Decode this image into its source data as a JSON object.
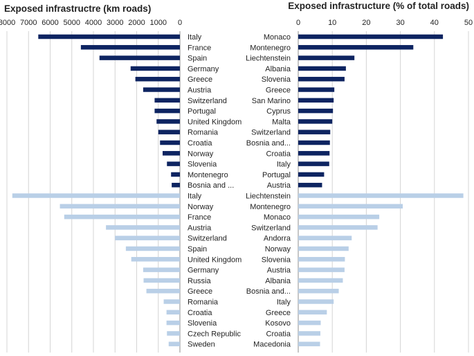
{
  "colors": {
    "dark": "#0d2461",
    "light": "#b9cfe7",
    "grid": "#d4d4d4",
    "axis": "#8c8c8c",
    "text": "#222222"
  },
  "chart_data": [
    {
      "type": "bar",
      "orientation": "horizontal",
      "direction": "reversed",
      "title": "Exposed infrastructre (km roads)",
      "xlim": [
        0,
        8000
      ],
      "xticks": [
        8000,
        7000,
        6000,
        5000,
        4000,
        3000,
        2000,
        1000,
        0
      ],
      "grid": true,
      "groups": [
        {
          "name": "dark-series",
          "color": "#0d2461",
          "categories": [
            "Italy",
            "France",
            "Spain",
            "Germany",
            "Greece",
            "Austria",
            "Switzerland",
            "Portugal",
            "United Kingdom",
            "Romania",
            "Croatia",
            "Norway",
            "Slovenia",
            "Montenegro",
            "Bosnia and ..."
          ],
          "values": [
            6550,
            4580,
            3720,
            2280,
            2060,
            1700,
            1170,
            1170,
            1080,
            1000,
            920,
            800,
            600,
            410,
            380
          ]
        },
        {
          "name": "light-series",
          "color": "#b9cfe7",
          "categories": [
            "Italy",
            "Norway",
            "France",
            "Austria",
            "Switzerland",
            "Spain",
            "United Kingdom",
            "Germany",
            "Russia",
            "Greece",
            "Romania",
            "Croatia",
            "Slovenia",
            "Czech Republic",
            "Sweden"
          ],
          "values": [
            7750,
            5550,
            5350,
            3420,
            3000,
            2500,
            2250,
            1700,
            1680,
            1550,
            750,
            620,
            620,
            600,
            520
          ]
        }
      ]
    },
    {
      "type": "bar",
      "orientation": "horizontal",
      "direction": "normal",
      "title": "Exposed infrastructure (% of  total roads)",
      "xlim": [
        0,
        50
      ],
      "xticks": [
        0,
        10,
        20,
        30,
        40,
        50
      ],
      "grid": true,
      "groups": [
        {
          "name": "dark-series",
          "color": "#0d2461",
          "categories": [
            "Monaco",
            "Montenegro",
            "Liechtenstein",
            "Albania",
            "Slovenia",
            "Greece",
            "San Marino",
            "Cyprus",
            "Malta",
            "Switzerland",
            "Bosnia and...",
            "Croatia",
            "Italy",
            "Portugal",
            "Austria"
          ],
          "values": [
            42.5,
            33.8,
            16.5,
            14.0,
            13.6,
            10.6,
            10.4,
            10.2,
            10.0,
            9.4,
            9.3,
            9.2,
            9.1,
            7.6,
            7.0
          ]
        },
        {
          "name": "light-series",
          "color": "#b9cfe7",
          "categories": [
            "Liechtenstein",
            "Montenegro",
            "Monaco",
            "Switzerland",
            "Andorra",
            "Norway",
            "Slovenia",
            "Austria",
            "Albania",
            "Bosnia and...",
            "Italy",
            "Greece",
            "Kosovo",
            "Croatia",
            "Macedonia"
          ],
          "values": [
            48.5,
            30.7,
            23.8,
            23.3,
            15.7,
            14.8,
            13.7,
            13.6,
            13.1,
            11.9,
            10.4,
            8.4,
            6.6,
            6.5,
            6.4
          ]
        }
      ]
    }
  ]
}
